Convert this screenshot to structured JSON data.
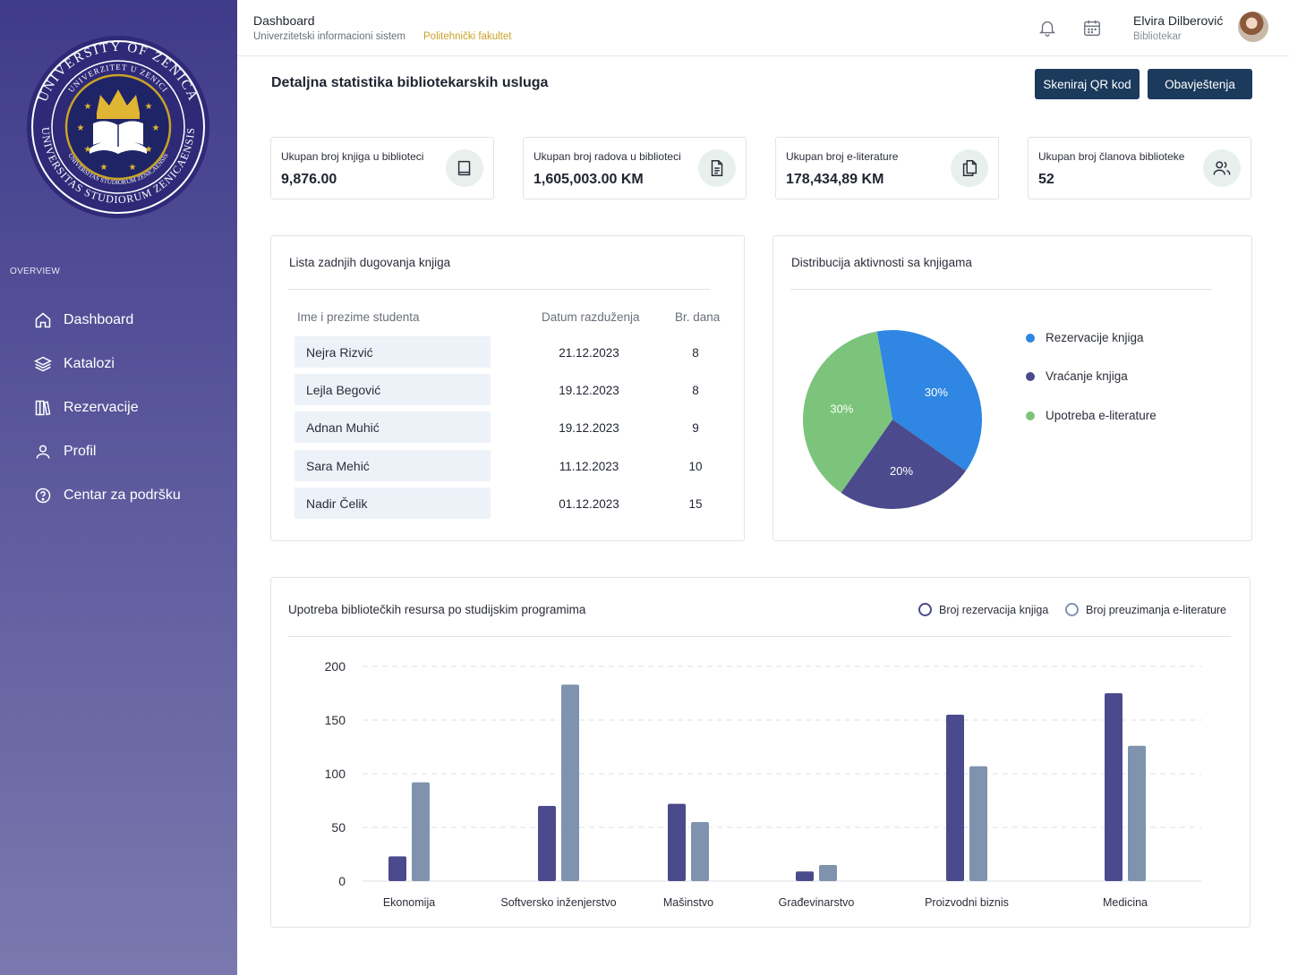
{
  "sidebar": {
    "seal_text": {
      "outer_top": "UNIVERSITY OF ZENICA",
      "outer_bottom": "UNIVERSITAS STUDIORUM ZENICAENSIS",
      "inner_top": "UNIVERZITET U ZENICI",
      "inner_bottom": "UNIVERSITAS STUDIORUM ZENICAENSIS"
    },
    "section_label": "OVERVIEW",
    "items": [
      {
        "label": "Dashboard",
        "icon": "home-icon"
      },
      {
        "label": "Katalozi",
        "icon": "layers-icon"
      },
      {
        "label": "Rezervacije",
        "icon": "books-icon"
      },
      {
        "label": "Profil",
        "icon": "user-icon"
      },
      {
        "label": "Centar za podršku",
        "icon": "help-icon"
      }
    ]
  },
  "topbar": {
    "title": "Dashboard",
    "subtitle": "Univerzitetski informacioni sistem",
    "faculty": "Politehnički fakultet",
    "user_name": "Elvira Dilberović",
    "user_role": "Bibliotekar"
  },
  "page": {
    "title": "Detaljna statistika bibliotekarskih usluga",
    "scan_button": "Skeniraj QR kod",
    "notifications_button": "Obavještenja"
  },
  "stats": [
    {
      "label": "Ukupan broj knjiga u biblioteci",
      "value": "9,876.00",
      "icon": "book-icon"
    },
    {
      "label": "Ukupan broj radova u biblioteci",
      "value": "1,605,003.00 KM",
      "icon": "document-icon"
    },
    {
      "label": "Ukupan broj e-literature",
      "value": "178,434,89 KM",
      "icon": "copy-icon"
    },
    {
      "label": "Ukupan broj članova biblioteke",
      "value": "52",
      "icon": "users-icon"
    }
  ],
  "debts": {
    "title": "Lista zadnjih dugovanja knjiga",
    "columns": [
      "Ime i prezime studenta",
      "Datum razduženja",
      "Br. dana"
    ],
    "rows": [
      {
        "name": "Nejra Rizvić",
        "date": "21.12.2023",
        "days": "8"
      },
      {
        "name": "Lejla Begović",
        "date": "19.12.2023",
        "days": "8"
      },
      {
        "name": "Adnan Muhić",
        "date": "19.12.2023",
        "days": "9"
      },
      {
        "name": "Sara Mehić",
        "date": "11.12.2023",
        "days": "10"
      },
      {
        "name": "Nadir Čelik",
        "date": "01.12.2023",
        "days": "15"
      }
    ]
  },
  "chart_data": [
    {
      "type": "pie",
      "title": "Distribucija aktivnosti sa knjigama",
      "labels": [
        "Rezervacije knjiga",
        "Vraćanje knjiga",
        "Upotreba e-literature"
      ],
      "values": [
        30,
        20,
        30
      ],
      "value_labels": [
        "30%",
        "20%",
        "30%"
      ],
      "colors": [
        "#2f86e3",
        "#4b4a8c",
        "#7cc47c"
      ],
      "legend": "right"
    },
    {
      "type": "bar",
      "title": "Upotreba bibliotečkih resursa po studijskim programima",
      "categories": [
        "Ekonomija",
        "Softversko inženjerstvo",
        "Mašinstvo",
        "Građevinarstvo",
        "Proizvodni biznis",
        "Medicina"
      ],
      "series": [
        {
          "name": "Broj rezervacija knjiga",
          "values": [
            23,
            70,
            72,
            9,
            155,
            175
          ],
          "color": "#4b4a8c"
        },
        {
          "name": "Broj preuzimanja e-literature",
          "values": [
            92,
            183,
            55,
            15,
            107,
            126
          ],
          "color": "#7f93ae"
        }
      ],
      "yticks": [
        "0",
        "50",
        "100",
        "150",
        "200"
      ],
      "ylim": [
        0,
        200
      ],
      "grid": true,
      "legend": "top-right"
    }
  ]
}
